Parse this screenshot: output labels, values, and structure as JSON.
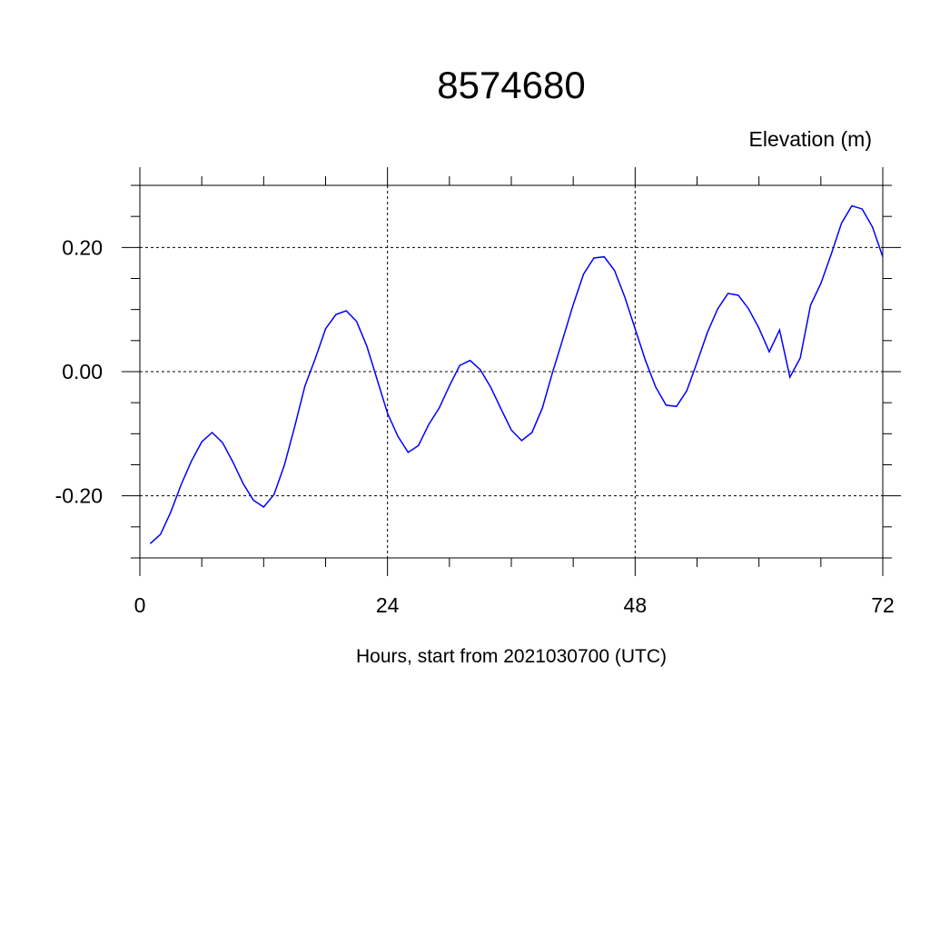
{
  "chart_data": {
    "type": "line",
    "title": "8574680",
    "y_label": "Elevation (m)",
    "x_label": "Hours, start from 2021030700 (UTC)",
    "x": [
      1,
      2,
      3,
      4,
      5,
      6,
      7,
      8,
      9,
      10,
      11,
      12,
      13,
      14,
      15,
      16,
      17,
      18,
      19,
      20,
      21,
      22,
      23,
      24,
      25,
      26,
      27,
      28,
      29,
      30,
      31,
      32,
      33,
      34,
      35,
      36,
      37,
      38,
      39,
      40,
      41,
      42,
      43,
      44,
      45,
      46,
      47,
      48,
      49,
      50,
      51,
      52,
      53,
      54,
      55,
      56,
      57,
      58,
      59,
      60,
      61,
      62,
      63,
      64,
      65,
      66,
      67,
      68,
      69,
      70,
      71,
      72
    ],
    "series": [
      {
        "color": "#0000ff",
        "values": [
          -0.277,
          -0.262,
          -0.226,
          -0.182,
          -0.144,
          -0.113,
          -0.098,
          -0.114,
          -0.145,
          -0.18,
          -0.207,
          -0.218,
          -0.198,
          -0.151,
          -0.089,
          -0.023,
          0.021,
          0.069,
          0.092,
          0.098,
          0.081,
          0.041,
          -0.013,
          -0.067,
          -0.104,
          -0.13,
          -0.119,
          -0.085,
          -0.059,
          -0.023,
          0.01,
          0.018,
          0.003,
          -0.025,
          -0.06,
          -0.094,
          -0.111,
          -0.098,
          -0.059,
          -0.001,
          0.053,
          0.108,
          0.157,
          0.183,
          0.185,
          0.163,
          0.12,
          0.069,
          0.018,
          -0.025,
          -0.054,
          -0.056,
          -0.031,
          0.015,
          0.063,
          0.101,
          0.126,
          0.123,
          0.101,
          0.07,
          0.032,
          0.067,
          -0.009,
          0.022,
          0.107,
          0.142,
          0.189,
          0.239,
          0.267,
          0.262,
          0.233,
          0.185
        ]
      }
    ],
    "xlim": [
      0,
      72
    ],
    "xticks": [
      0,
      24,
      48,
      72
    ],
    "x_minor_ticks": [
      6,
      12,
      18,
      30,
      36,
      42,
      54,
      60,
      66
    ],
    "ylim": [
      -0.3,
      0.3
    ],
    "yticks": [
      {
        "value": -0.2,
        "label": "-0.20"
      },
      {
        "value": 0,
        "label": "0.00"
      },
      {
        "value": 0.2,
        "label": "0.20"
      }
    ],
    "y_minor_ticks": [
      -0.3,
      -0.25,
      -0.15,
      -0.1,
      -0.05,
      0.05,
      0.1,
      0.15,
      0.25,
      0.3
    ],
    "grid": true
  }
}
